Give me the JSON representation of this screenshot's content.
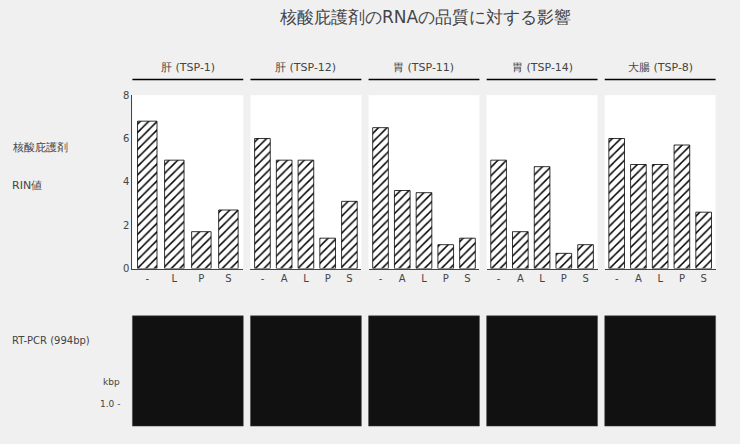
{
  "title": "核酸庇護剤のRNAの品質に対する影響",
  "annotations": [
    "核酸庇護剤",
    "RIN値",
    "RT-PCR (994bp)",
    "kbp",
    "1.0 -"
  ],
  "chart_data": [
    {
      "type": "bar",
      "title": "肝 (TSP-1)",
      "categories": [
        "-",
        "L",
        "P",
        "S"
      ],
      "values": [
        6.8,
        5.0,
        1.7,
        2.7
      ],
      "ylim": [
        0,
        8
      ],
      "yticks": [
        0,
        2,
        4,
        6,
        8
      ],
      "color": "#ffffff",
      "grid": false,
      "tick_labels": true
    },
    {
      "type": "bar",
      "title": "肝 (TSP-12)",
      "categories": [
        "-",
        "A",
        "L",
        "P",
        "S"
      ],
      "values": [
        6.0,
        5.0,
        5.0,
        1.4,
        3.1
      ],
      "ylim": [
        0,
        8
      ],
      "yticks": [
        0,
        2,
        4,
        6,
        8
      ],
      "color": "#ffffff",
      "grid": false,
      "tick_labels": "x"
    },
    {
      "type": "bar",
      "title": "胃 (TSP-11)",
      "categories": [
        "-",
        "A",
        "L",
        "P",
        "S"
      ],
      "values": [
        6.5,
        3.6,
        3.5,
        1.1,
        1.4
      ],
      "ylim": [
        0,
        8
      ],
      "yticks": [
        0,
        2,
        4,
        6,
        8
      ],
      "color": "#ffffff",
      "grid": false,
      "tick_labels": "x"
    },
    {
      "type": "bar",
      "title": "胃 (TSP-14)",
      "categories": [
        "-",
        "A",
        "L",
        "P",
        "S"
      ],
      "values": [
        5.0,
        1.7,
        4.7,
        0.7,
        1.1
      ],
      "ylim": [
        0,
        8
      ],
      "yticks": [
        0,
        2,
        4,
        6,
        8
      ],
      "color": "#ffffff",
      "grid": false,
      "tick_labels": "x"
    },
    {
      "type": "bar",
      "title": "大腸 (TSP-8)",
      "categories": [
        "-",
        "A",
        "L",
        "P",
        "S"
      ],
      "values": [
        6.0,
        4.8,
        4.8,
        5.7,
        2.6
      ],
      "ylim": [
        0,
        8
      ],
      "yticks": [
        0,
        2,
        4,
        6,
        8
      ],
      "color": "#ffffff",
      "grid": false,
      "tick_labels": "x"
    }
  ]
}
